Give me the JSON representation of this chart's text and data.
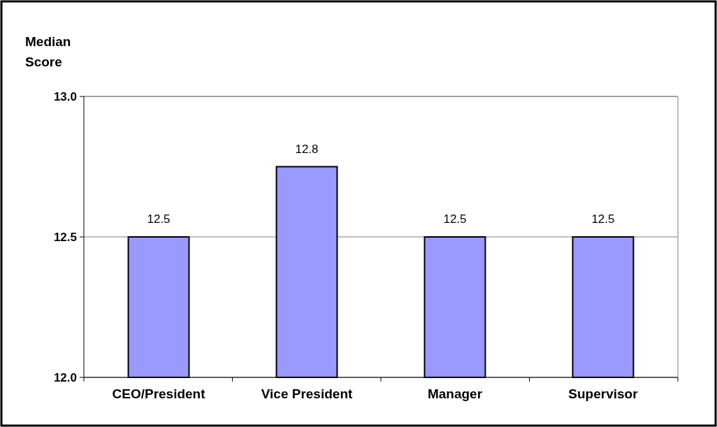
{
  "chart_data": {
    "type": "bar",
    "ylabel": "Median Score",
    "categories": [
      "CEO/President",
      "Vice President",
      "Manager",
      "Supervisor"
    ],
    "values": [
      12.5,
      12.75,
      12.5,
      12.5
    ],
    "value_labels": [
      "12.5",
      "12.8",
      "12.5",
      "12.5"
    ],
    "color": "#9999ff",
    "ylim": [
      12.0,
      13.0
    ],
    "yticks": [
      {
        "value": 12.0,
        "label": "12.0"
      },
      {
        "value": 12.5,
        "label": "12.5"
      },
      {
        "value": 13.0,
        "label": "13.0"
      }
    ],
    "grid": "y"
  }
}
